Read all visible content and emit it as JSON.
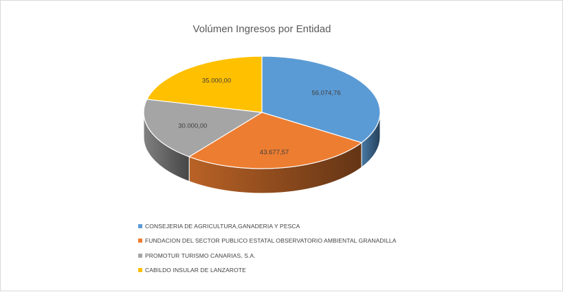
{
  "chart_data": {
    "type": "pie",
    "title": "Volúmen Ingresos por Entidad",
    "legend_position": "bottom",
    "data_labels": [
      "56.074,76",
      "43.677,57",
      "30.000,00",
      "35.000,00"
    ],
    "slices": [
      {
        "name": "CONSEJERIA DE AGRICULTURA,GANADERIA Y PESCA",
        "value": 56074.76,
        "color": "#5B9BD5"
      },
      {
        "name": "FUNDACION  DEL SECTOR PUBLICO ESTATAL OBSERVATORIO AMBIENTAL GRANADILLA",
        "value": 43677.57,
        "color": "#ED7D31"
      },
      {
        "name": "PROMOTUR TURISMO CANARIAS, S.A.",
        "value": 30000.0,
        "color": "#A5A5A5"
      },
      {
        "name": "CABILDO INSULAR DE LANZAROTE",
        "value": 35000.0,
        "color": "#FFC000"
      }
    ]
  }
}
